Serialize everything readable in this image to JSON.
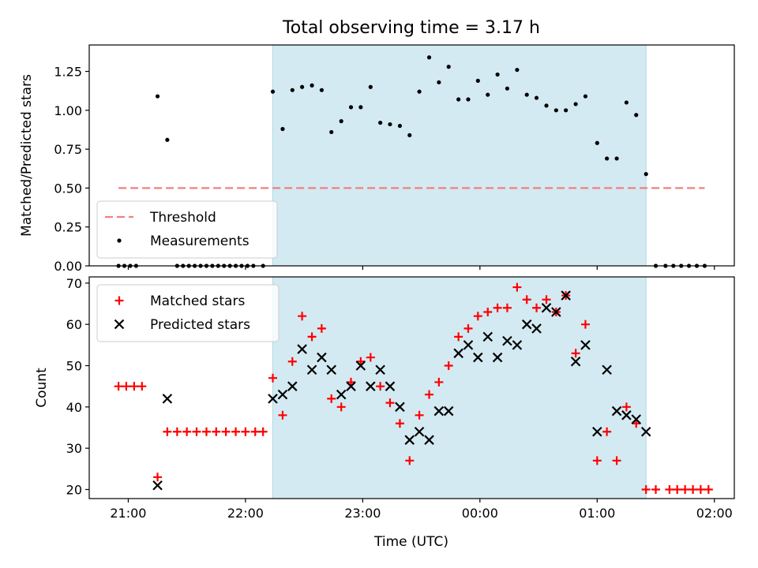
{
  "figure": {
    "title": "Total observing time = 3.17 h",
    "xlabel": "Time (UTC)",
    "x_ticks": [
      "21:00",
      "22:00",
      "23:00",
      "00:00",
      "01:00",
      "02:00"
    ],
    "x_tick_hours": [
      21,
      22,
      23,
      24,
      25,
      26
    ],
    "x_range_hours": [
      20.667,
      26.17
    ],
    "shaded_span_hours": [
      22.233,
      25.417
    ],
    "shade_color": "#add8e6"
  },
  "chart_data": [
    {
      "type": "scatter",
      "ylabel": "Matched/Predicted stars",
      "ylim": [
        0,
        1.42
      ],
      "y_ticks": [
        "0.00",
        "0.25",
        "0.50",
        "0.75",
        "1.00",
        "1.25"
      ],
      "y_tick_values": [
        0,
        0.25,
        0.5,
        0.75,
        1.0,
        1.25
      ],
      "legend_position": "lower-left",
      "threshold": {
        "name": "Threshold",
        "value": 0.5,
        "x_range_hours": [
          20.917,
          25.917
        ],
        "color": "#f08080"
      },
      "series": [
        {
          "name": "Measurements",
          "color": "#000000",
          "x_hours": [
            20.917,
            20.967,
            21.017,
            21.067,
            21.25,
            21.333,
            21.417,
            21.467,
            21.517,
            21.567,
            21.617,
            21.667,
            21.717,
            21.767,
            21.817,
            21.867,
            21.917,
            21.967,
            22.017,
            22.067,
            22.15,
            22.233,
            22.317,
            22.4,
            22.483,
            22.567,
            22.65,
            22.733,
            22.817,
            22.9,
            22.983,
            23.067,
            23.15,
            23.233,
            23.317,
            23.4,
            23.483,
            23.567,
            23.65,
            23.733,
            23.817,
            23.9,
            23.983,
            24.067,
            24.15,
            24.233,
            24.317,
            24.4,
            24.483,
            24.567,
            24.65,
            24.733,
            24.817,
            24.9,
            25.0,
            25.083,
            25.167,
            25.25,
            25.333,
            25.417,
            25.5,
            25.583,
            25.65,
            25.717,
            25.783,
            25.85,
            25.917
          ],
          "y": [
            0,
            0,
            0,
            0,
            1.09,
            0.81,
            0,
            0,
            0,
            0,
            0,
            0,
            0,
            0,
            0,
            0,
            0,
            0,
            0,
            0,
            0,
            1.12,
            0.88,
            1.13,
            1.15,
            1.16,
            1.13,
            0.86,
            0.93,
            1.02,
            1.02,
            1.15,
            0.92,
            0.91,
            0.9,
            0.84,
            1.12,
            1.34,
            1.18,
            1.28,
            1.07,
            1.07,
            1.19,
            1.1,
            1.23,
            1.14,
            1.26,
            1.1,
            1.08,
            1.03,
            1.0,
            1.0,
            1.04,
            1.09,
            0.79,
            0.69,
            0.69,
            1.05,
            0.97,
            0.59,
            0,
            0,
            0,
            0,
            0,
            0,
            0
          ]
        }
      ]
    },
    {
      "type": "scatter",
      "ylabel": "Count",
      "ylim": [
        17.8,
        71.5
      ],
      "y_ticks": [
        "20",
        "30",
        "40",
        "50",
        "60",
        "70"
      ],
      "y_tick_values": [
        20,
        30,
        40,
        50,
        60,
        70
      ],
      "legend_position": "upper-left",
      "series": [
        {
          "name": "Matched stars",
          "marker": "plus",
          "color": "#ff0000",
          "x_hours": [
            20.917,
            20.983,
            21.05,
            21.117,
            21.25,
            21.333,
            21.417,
            21.5,
            21.583,
            21.667,
            21.75,
            21.833,
            21.917,
            22.0,
            22.083,
            22.15,
            22.233,
            22.317,
            22.4,
            22.483,
            22.567,
            22.65,
            22.733,
            22.817,
            22.9,
            22.983,
            23.067,
            23.15,
            23.233,
            23.317,
            23.4,
            23.483,
            23.567,
            23.65,
            23.733,
            23.817,
            23.9,
            23.983,
            24.067,
            24.15,
            24.233,
            24.317,
            24.4,
            24.483,
            24.567,
            24.65,
            24.733,
            24.817,
            24.9,
            25.0,
            25.083,
            25.167,
            25.25,
            25.333,
            25.417,
            25.5,
            25.617,
            25.683,
            25.75,
            25.817,
            25.883,
            25.95
          ],
          "y": [
            45,
            45,
            45,
            45,
            23,
            34,
            34,
            34,
            34,
            34,
            34,
            34,
            34,
            34,
            34,
            34,
            47,
            38,
            51,
            62,
            57,
            59,
            42,
            40,
            46,
            51,
            52,
            45,
            41,
            36,
            27,
            38,
            43,
            46,
            50,
            57,
            59,
            62,
            63,
            64,
            64,
            69,
            66,
            64,
            66,
            63,
            67,
            53,
            60,
            27,
            34,
            27,
            40,
            36,
            20,
            20,
            20,
            20,
            20,
            20,
            20,
            20
          ]
        },
        {
          "name": "Predicted stars",
          "marker": "x",
          "color": "#000000",
          "x_hours": [
            21.25,
            21.333,
            22.233,
            22.317,
            22.4,
            22.483,
            22.567,
            22.65,
            22.733,
            22.817,
            22.9,
            22.983,
            23.067,
            23.15,
            23.233,
            23.317,
            23.4,
            23.483,
            23.567,
            23.65,
            23.733,
            23.817,
            23.9,
            23.983,
            24.067,
            24.15,
            24.233,
            24.317,
            24.4,
            24.483,
            24.567,
            24.65,
            24.733,
            24.817,
            24.9,
            25.0,
            25.083,
            25.167,
            25.25,
            25.333,
            25.417
          ],
          "y": [
            21,
            42,
            42,
            43,
            45,
            54,
            49,
            52,
            49,
            43,
            45,
            50,
            45,
            49,
            45,
            40,
            32,
            34,
            32,
            39,
            39,
            53,
            55,
            52,
            57,
            52,
            56,
            55,
            60,
            59,
            64,
            63,
            67,
            51,
            55,
            34,
            49,
            39,
            38,
            37,
            34
          ]
        }
      ]
    }
  ]
}
